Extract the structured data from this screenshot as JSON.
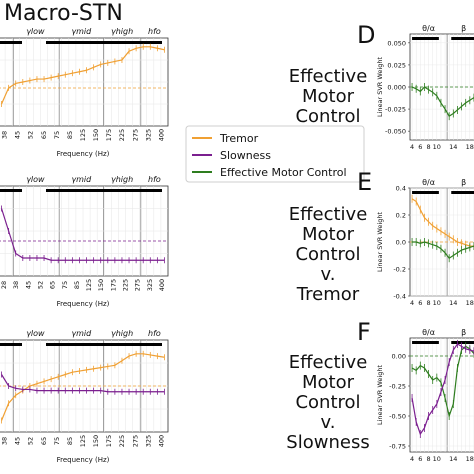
{
  "figure": {
    "macro_title": "Macro-STN",
    "panel_letters": [
      "D",
      "E",
      "F"
    ],
    "panel_titles": [
      [
        "Effective",
        "Motor",
        "Control"
      ],
      [
        "Effective",
        "Motor",
        "Control",
        "v.",
        "Tremor"
      ],
      [
        "Effective",
        "Motor",
        "Control",
        "v.",
        "Slowness"
      ]
    ],
    "legend": [
      {
        "label": "Tremor",
        "color": "#f0a033"
      },
      {
        "label": "Slowness",
        "color": "#7b1f8f"
      },
      {
        "label": "Effective Motor Control",
        "color": "#2e7d1f"
      }
    ]
  },
  "chart_data": [
    {
      "type": "line",
      "panel": "left-top",
      "xlabel": "Frequency (Hz)",
      "x_ticks": [
        "38",
        "45",
        "52",
        "65",
        "75",
        "85",
        "125",
        "150",
        "175",
        "225",
        "275",
        "325",
        "400"
      ],
      "band_labels": [
        "γlow",
        "γmid",
        "γhigh",
        "hfo"
      ],
      "grid": true,
      "series": [
        {
          "name": "Tremor",
          "color": "#f0a033",
          "values": [
            0.035,
            0.046,
            0.049,
            0.05,
            0.051,
            0.052,
            0.052,
            0.053,
            0.054,
            0.055,
            0.056,
            0.057,
            0.058,
            0.06,
            0.062,
            0.063,
            0.064,
            0.065,
            0.071,
            0.073,
            0.074,
            0.074,
            0.073,
            0.072
          ]
        }
      ]
    },
    {
      "type": "line",
      "panel": "left-middle",
      "xlabel": "Frequency (Hz)",
      "x_ticks": [
        "28",
        "38",
        "45",
        "52",
        "65",
        "75",
        "85",
        "125",
        "150",
        "175",
        "225",
        "275",
        "325",
        "400"
      ],
      "band_labels": [
        "γlow",
        "γmid",
        "γhigh",
        "hfo"
      ],
      "grid": true,
      "series": [
        {
          "name": "Slowness",
          "color": "#7b1f8f",
          "values": [
            0.02,
            0.01,
            0.0,
            -0.002,
            -0.002,
            -0.002,
            -0.002,
            -0.003,
            -0.003,
            -0.003,
            -0.003,
            -0.003,
            -0.003,
            -0.003,
            -0.003,
            -0.003,
            -0.003,
            -0.003,
            -0.003,
            -0.003,
            -0.003,
            -0.003,
            -0.003,
            -0.003
          ]
        }
      ]
    },
    {
      "type": "line",
      "panel": "left-bottom",
      "xlabel": "Frequency (Hz)",
      "x_ticks": [
        "38",
        "45",
        "52",
        "65",
        "75",
        "85",
        "125",
        "150",
        "175",
        "225",
        "275",
        "325",
        "400"
      ],
      "band_labels": [
        "γlow",
        "γmid",
        "γhigh",
        "hfo"
      ],
      "grid": true,
      "series": [
        {
          "name": "Tremor",
          "color": "#f0a033",
          "values": [
            -0.03,
            -0.015,
            -0.008,
            -0.004,
            0.0,
            0.002,
            0.004,
            0.006,
            0.008,
            0.01,
            0.012,
            0.013,
            0.014,
            0.015,
            0.016,
            0.017,
            0.018,
            0.022,
            0.026,
            0.028,
            0.028,
            0.027,
            0.026,
            0.025
          ]
        },
        {
          "name": "Slowness",
          "color": "#7b1f8f",
          "values": [
            0.01,
            0.0,
            -0.002,
            -0.003,
            -0.003,
            -0.004,
            -0.004,
            -0.004,
            -0.004,
            -0.004,
            -0.004,
            -0.004,
            -0.004,
            -0.004,
            -0.004,
            -0.005,
            -0.005,
            -0.005,
            -0.005,
            -0.005,
            -0.005,
            -0.005,
            -0.005,
            -0.005
          ]
        }
      ]
    },
    {
      "type": "line",
      "panel": "D",
      "ylabel": "Linear SVR Weight",
      "x_ticks": [
        "4",
        "6",
        "8",
        "10",
        "14",
        "18"
      ],
      "y_ticks": [
        "0.050",
        "0.025",
        "0.000",
        "-0.025",
        "-0.050"
      ],
      "ylim": [
        -0.06,
        0.06
      ],
      "band_labels": [
        "θ/α",
        "β"
      ],
      "grid": true,
      "series": [
        {
          "name": "Effective Motor Control",
          "color": "#2e7d1f",
          "x": [
            4,
            5,
            6,
            7,
            8,
            9,
            10,
            11,
            12,
            13,
            14,
            15,
            16,
            17,
            18,
            19
          ],
          "values": [
            0.0,
            -0.002,
            -0.005,
            0.0,
            -0.003,
            -0.006,
            -0.01,
            -0.018,
            -0.025,
            -0.033,
            -0.03,
            -0.026,
            -0.022,
            -0.018,
            -0.015,
            -0.012
          ]
        }
      ]
    },
    {
      "type": "line",
      "panel": "E",
      "ylabel": "Linear SVR Weight",
      "x_ticks": [
        "4",
        "6",
        "8",
        "10",
        "14",
        "18"
      ],
      "y_ticks": [
        "0.4",
        "0.2",
        "0.0",
        "-0.2",
        "-0.4"
      ],
      "ylim": [
        -0.4,
        0.4
      ],
      "band_labels": [
        "θ/α",
        "β"
      ],
      "grid": true,
      "series": [
        {
          "name": "Tremor",
          "color": "#f0a033",
          "x": [
            4,
            5,
            6,
            7,
            8,
            9,
            10,
            11,
            12,
            13,
            14,
            15,
            16,
            17,
            18,
            19
          ],
          "values": [
            0.32,
            0.3,
            0.24,
            0.18,
            0.15,
            0.12,
            0.1,
            0.08,
            0.06,
            0.04,
            0.02,
            0.0,
            -0.01,
            -0.02,
            -0.03,
            -0.03
          ]
        },
        {
          "name": "Effective Motor Control",
          "color": "#2e7d1f",
          "x": [
            4,
            5,
            6,
            7,
            8,
            9,
            10,
            11,
            12,
            13,
            14,
            15,
            16,
            17,
            18,
            19
          ],
          "values": [
            0.0,
            0.0,
            -0.01,
            0.0,
            -0.01,
            -0.02,
            -0.03,
            -0.05,
            -0.08,
            -0.12,
            -0.1,
            -0.08,
            -0.06,
            -0.05,
            -0.04,
            -0.03
          ]
        }
      ]
    },
    {
      "type": "line",
      "panel": "F",
      "ylabel": "Linear SVR Weight",
      "x_ticks": [
        "4",
        "6",
        "8",
        "10",
        "14",
        "18"
      ],
      "y_ticks": [
        "0.00",
        "-0.25",
        "-0.50",
        "-0.75"
      ],
      "ylim": [
        -0.8,
        0.15
      ],
      "band_labels": [
        "θ/α",
        "β"
      ],
      "grid": true,
      "series": [
        {
          "name": "Effective Motor Control",
          "color": "#2e7d1f",
          "x": [
            4,
            5,
            6,
            7,
            8,
            9,
            10,
            11,
            12,
            13,
            14,
            15,
            16,
            17,
            18,
            19
          ],
          "values": [
            -0.1,
            -0.12,
            -0.08,
            -0.1,
            -0.15,
            -0.2,
            -0.18,
            -0.22,
            -0.35,
            -0.5,
            -0.4,
            -0.1,
            0.05,
            0.08,
            0.06,
            0.02
          ]
        },
        {
          "name": "Slowness",
          "color": "#7b1f8f",
          "x": [
            4,
            5,
            6,
            7,
            8,
            9,
            10,
            11,
            12,
            13,
            14,
            15,
            16,
            17,
            18,
            19
          ],
          "values": [
            -0.35,
            -0.55,
            -0.65,
            -0.6,
            -0.5,
            -0.45,
            -0.4,
            -0.3,
            -0.2,
            -0.05,
            0.05,
            0.1,
            0.08,
            0.06,
            0.05,
            0.04
          ]
        }
      ]
    }
  ]
}
